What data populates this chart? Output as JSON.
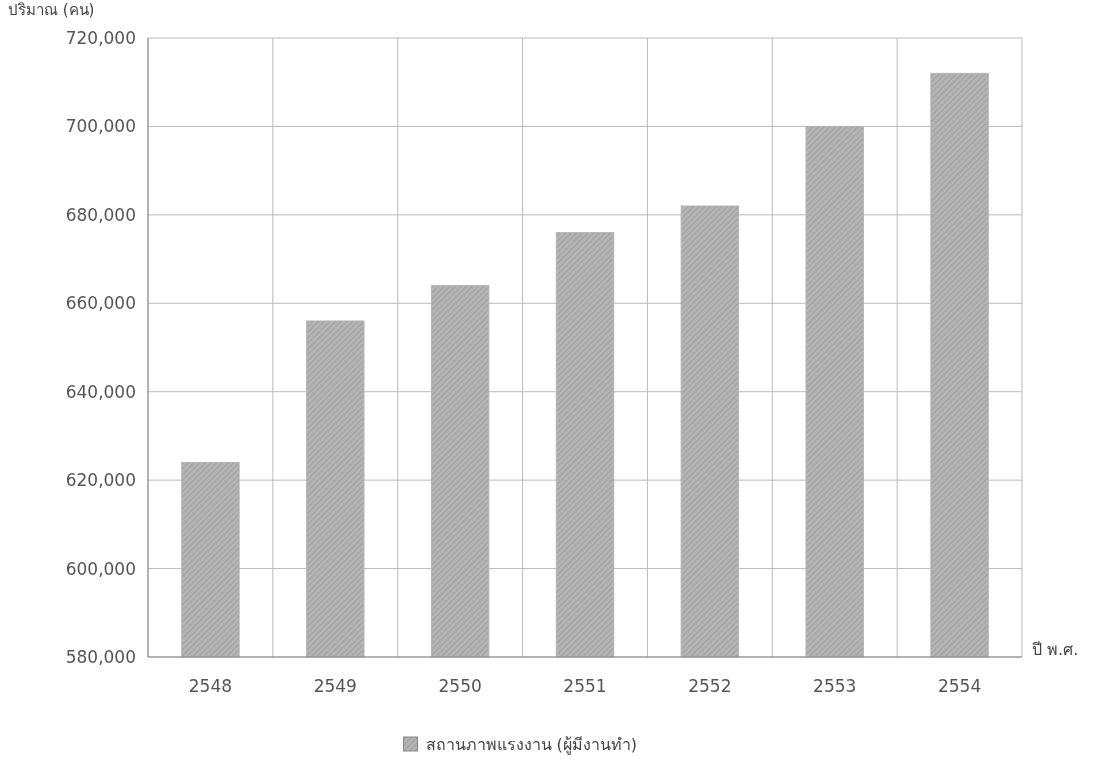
{
  "chart_data": {
    "type": "bar",
    "ylabel": "ปริมาณ (คน)",
    "xlabel": "ปี พ.ศ.",
    "categories": [
      "2548",
      "2549",
      "2550",
      "2551",
      "2552",
      "2553",
      "2554"
    ],
    "series": [
      {
        "name": "สถานภาพแรงงาน (ผู้มีงานทำ)",
        "color": "#b4b4b4",
        "values": [
          624000,
          656000,
          664000,
          676000,
          682000,
          700000,
          712000
        ]
      }
    ],
    "ylim": [
      580000,
      720000
    ],
    "yticks": [
      {
        "value": 580000,
        "label": "580,000"
      },
      {
        "value": 600000,
        "label": "600,000"
      },
      {
        "value": 620000,
        "label": "620,000"
      },
      {
        "value": 640000,
        "label": "640,000"
      },
      {
        "value": 660000,
        "label": "660,000"
      },
      {
        "value": 680000,
        "label": "680,000"
      },
      {
        "value": 700000,
        "label": "700,000"
      },
      {
        "value": 720000,
        "label": "720,000"
      }
    ],
    "grid": true,
    "legend": "bottom"
  }
}
